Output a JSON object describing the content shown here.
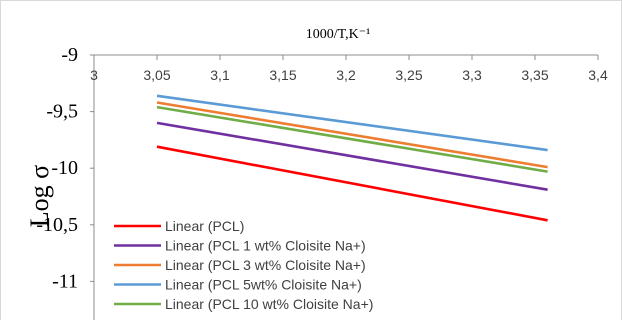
{
  "chart_data": {
    "type": "line",
    "title": "",
    "xlabel": "1000/T,K⁻¹",
    "ylabel": "Log σ",
    "xlim": [
      3,
      3.4
    ],
    "ylim": [
      -11,
      -9
    ],
    "x_ticks": [
      "3",
      "3,05",
      "3,1",
      "3,15",
      "3,2",
      "3,25",
      "3,3",
      "3,35",
      "3,4"
    ],
    "y_ticks": [
      "-9",
      "-9,5",
      "-10",
      "-10,5",
      "-11"
    ],
    "x_axis_position": "top",
    "grid": false,
    "legend_position": "bottom-left",
    "series": [
      {
        "name": "Linear (PCL)",
        "color": "#ff0000",
        "x": [
          3.05,
          3.36
        ],
        "y": [
          -9.81,
          -10.46
        ]
      },
      {
        "name": "Linear (PCL 1 wt% Cloisite Na+)",
        "color": "#7030a0",
        "x": [
          3.05,
          3.36
        ],
        "y": [
          -9.6,
          -10.19
        ]
      },
      {
        "name": "Linear (PCL 3 wt% Cloisite Na+)",
        "color": "#ed7d31",
        "x": [
          3.05,
          3.36
        ],
        "y": [
          -9.42,
          -9.99
        ]
      },
      {
        "name": "Linear (PCL 5wt% Cloisite Na+)",
        "color": "#5b9bd5",
        "x": [
          3.05,
          3.36
        ],
        "y": [
          -9.36,
          -9.84
        ]
      },
      {
        "name": "Linear (PCL 10 wt% Cloisite Na+)",
        "color": "#70ad47",
        "x": [
          3.05,
          3.36
        ],
        "y": [
          -9.46,
          -10.03
        ]
      }
    ]
  }
}
